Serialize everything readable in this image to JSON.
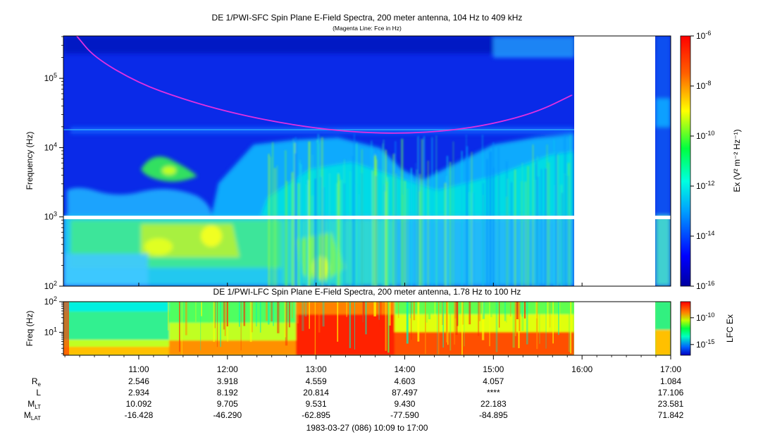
{
  "chart_data": [
    {
      "type": "heatmap",
      "title": "DE 1/PWI-SFC  Spin Plane E-Field Spectra, 200 meter antenna, 104 Hz to 409 kHz",
      "subtitle": "(Magenta Line: Fce in Hz)",
      "ylabel": "Frequency (Hz)",
      "y_scale": "log",
      "ylim": [
        100,
        409000
      ],
      "y_ticks": [
        {
          "value": 100,
          "label": "10",
          "exp": "2"
        },
        {
          "value": 1000,
          "label": "10",
          "exp": "3"
        },
        {
          "value": 10000,
          "label": "10",
          "exp": "4"
        },
        {
          "value": 100000,
          "label": "10",
          "exp": "5"
        }
      ],
      "data_gaps": [
        [
          "15:55",
          "16:54"
        ]
      ],
      "colorbar": {
        "label": "Ex (V² m⁻² Hz⁻¹)",
        "scale": "log",
        "range": [
          1e-16,
          1e-06
        ],
        "ticks": [
          {
            "value": 1e-06,
            "label": "10",
            "exp": "-6"
          },
          {
            "value": 1e-08,
            "label": "10",
            "exp": "-8"
          },
          {
            "value": 1e-10,
            "label": "10",
            "exp": "-10"
          },
          {
            "value": 1e-12,
            "label": "10",
            "exp": "-12"
          },
          {
            "value": 1e-14,
            "label": "10",
            "exp": "-14"
          },
          {
            "value": 1e-16,
            "label": "10",
            "exp": "-16"
          }
        ]
      },
      "series": [
        {
          "name": "Fce",
          "color": "#e030e0",
          "points": [
            {
              "t": "10:18",
              "f": 409000
            },
            {
              "t": "10:30",
              "f": 200000
            },
            {
              "t": "11:00",
              "f": 85000
            },
            {
              "t": "11:30",
              "f": 50000
            },
            {
              "t": "12:00",
              "f": 33000
            },
            {
              "t": "12:30",
              "f": 24000
            },
            {
              "t": "13:00",
              "f": 19000
            },
            {
              "t": "13:30",
              "f": 16500
            },
            {
              "t": "14:00",
              "f": 16000
            },
            {
              "t": "14:30",
              "f": 17500
            },
            {
              "t": "15:00",
              "f": 22000
            },
            {
              "t": "15:30",
              "f": 33000
            },
            {
              "t": "15:53",
              "f": 57000
            }
          ]
        }
      ]
    },
    {
      "type": "heatmap",
      "title": "DE 1/PWI-LFC  Spin Plane E-Field Spectra, 200 meter antenna, 1.78 Hz to 100 Hz",
      "ylabel": "Freq (Hz)",
      "y_scale": "log",
      "ylim": [
        1.78,
        100
      ],
      "y_ticks": [
        {
          "value": 10,
          "label": "10",
          "exp": "1"
        },
        {
          "value": 100,
          "label": "10",
          "exp": "2"
        }
      ],
      "data_gaps": [
        [
          "15:55",
          "16:54"
        ]
      ],
      "colorbar": {
        "label": "LFC Ex",
        "scale": "log",
        "range": [
          1e-17,
          1e-07
        ],
        "ticks": [
          {
            "value": 1e-10,
            "label": "10",
            "exp": "-10"
          },
          {
            "value": 1e-15,
            "label": "10",
            "exp": "-15"
          }
        ]
      }
    }
  ],
  "x_axis": {
    "start": "10:09",
    "end": "17:00",
    "ticks": [
      "11:00",
      "12:00",
      "13:00",
      "14:00",
      "15:00",
      "16:00",
      "17:00"
    ],
    "footer": "1983-03-27 (086) 10:09 to 17:00"
  },
  "ephemeris": {
    "rows": [
      {
        "label": "R",
        "sub": "e",
        "values": [
          "2.546",
          "3.918",
          "4.559",
          "4.603",
          "4.057",
          "",
          "1.084"
        ]
      },
      {
        "label": "L",
        "sub": "",
        "values": [
          "2.934",
          "8.192",
          "20.814",
          "87.497",
          "****",
          "",
          "17.106"
        ]
      },
      {
        "label": "M",
        "sub": "LT",
        "values": [
          "10.092",
          "9.705",
          "9.531",
          "9.430",
          "22.183",
          "",
          "23.581"
        ]
      },
      {
        "label": "M",
        "sub": "LAT",
        "values": [
          "-16.428",
          "-46.290",
          "-62.895",
          "-77.590",
          "-84.895",
          "",
          "71.842"
        ]
      }
    ]
  }
}
